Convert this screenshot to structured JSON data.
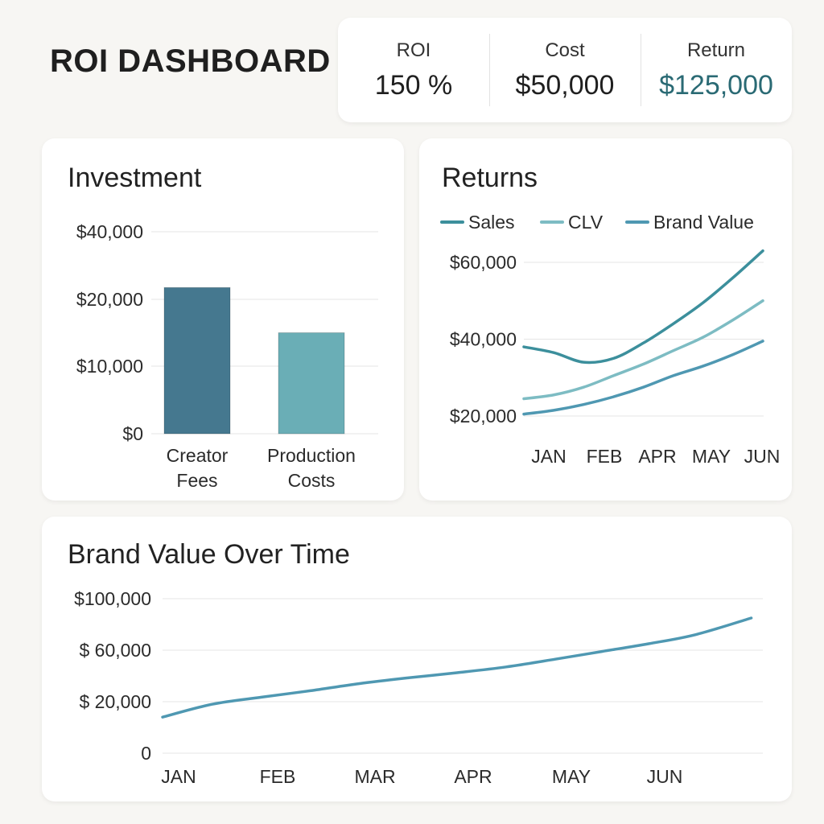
{
  "header": {
    "title": "ROI DASHBOARD",
    "kpis": [
      {
        "label": "ROI",
        "value": "150 %"
      },
      {
        "label": "Cost",
        "value": "$50,000"
      },
      {
        "label": "Return",
        "value": "$125,000"
      }
    ]
  },
  "colors": {
    "bar_creator": "#45788f",
    "bar_production": "#6aaeb6",
    "sales": "#3c8f9c",
    "clv": "#7dbcc3",
    "brand": "#4f98b2",
    "grid": "#e6e6e6",
    "return_value": "#2a6a74"
  },
  "chart_data": [
    {
      "id": "investment",
      "type": "bar",
      "title": "Investment",
      "categories": [
        [
          "Creator",
          "Fees"
        ],
        [
          "Production",
          "Costs"
        ]
      ],
      "values": [
        23500,
        15000
      ],
      "ylim": [
        0,
        40000
      ],
      "yticks": [
        {
          "value": 0,
          "label": "$0"
        },
        {
          "value": 10000,
          "label": "$10,000"
        },
        {
          "value": 20000,
          "label": "$20,000"
        },
        {
          "value": 40000,
          "label": "$40,000"
        }
      ],
      "grid": true
    },
    {
      "id": "returns",
      "type": "line",
      "title": "Returns",
      "categories": [
        "JAN",
        "FEB",
        "APR",
        "MAY",
        "JUN"
      ],
      "ylim": [
        20000,
        60000
      ],
      "yticks": [
        {
          "value": 20000,
          "label": "$20,000"
        },
        {
          "value": 40000,
          "label": "$40,000"
        },
        {
          "value": 60000,
          "label": "$60,000"
        }
      ],
      "legend": "top",
      "grid": true,
      "series": [
        {
          "name": "Sales",
          "x": [
            0,
            0.5,
            1,
            1.5,
            2,
            2.5,
            3,
            3.5,
            4
          ],
          "values": [
            38000,
            36500,
            34000,
            35000,
            39000,
            44000,
            49500,
            56000,
            63000
          ]
        },
        {
          "name": "CLV",
          "x": [
            0,
            0.5,
            1,
            1.5,
            2,
            2.5,
            3,
            3.5,
            4
          ],
          "values": [
            24500,
            25500,
            27500,
            30500,
            33500,
            37000,
            40500,
            45000,
            50000
          ]
        },
        {
          "name": "Brand Value",
          "x": [
            0,
            0.5,
            1,
            1.5,
            2,
            2.5,
            3,
            3.5,
            4
          ],
          "values": [
            20500,
            21500,
            23000,
            25000,
            27500,
            30500,
            33000,
            36000,
            39500
          ]
        }
      ]
    },
    {
      "id": "brand",
      "type": "line",
      "title": "Brand Value Over Time",
      "categories": [
        "JAN",
        "FEB",
        "MAR",
        "APR",
        "MAY",
        "JUN"
      ],
      "ylim": [
        0,
        100000
      ],
      "yticks": [
        {
          "value": 0,
          "label": "0"
        },
        {
          "value": 20000,
          "label": "$ 20,000"
        },
        {
          "value": 60000,
          "label": "$ 60,000"
        },
        {
          "value": 100000,
          "label": "$100,000"
        }
      ],
      "grid": true,
      "series": [
        {
          "name": "",
          "x": [
            0,
            0.5,
            1,
            1.5,
            2,
            2.5,
            3,
            3.5,
            4,
            4.5,
            5,
            5.5,
            6.1
          ],
          "values": [
            14000,
            19000,
            23500,
            28500,
            34000,
            38500,
            42500,
            47000,
            53000,
            59000,
            65000,
            72000,
            85000
          ]
        }
      ]
    }
  ]
}
